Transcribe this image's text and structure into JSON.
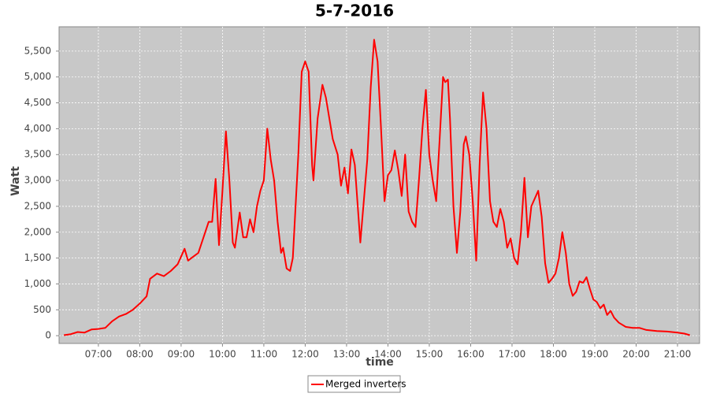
{
  "chart_data": {
    "type": "line",
    "title": "5-7-2016",
    "x_label": "time",
    "y_label": "Watt",
    "x": [
      "06:10",
      "06:20",
      "06:30",
      "06:40",
      "06:50",
      "07:00",
      "07:10",
      "07:20",
      "07:30",
      "07:40",
      "07:50",
      "08:00",
      "08:10",
      "08:15",
      "08:25",
      "08:35",
      "08:45",
      "08:55",
      "09:05",
      "09:10",
      "09:15",
      "09:25",
      "09:35",
      "09:40",
      "09:45",
      "09:50",
      "09:55",
      "10:00",
      "10:05",
      "10:10",
      "10:15",
      "10:18",
      "10:25",
      "10:30",
      "10:35",
      "10:40",
      "10:45",
      "10:50",
      "10:55",
      "11:00",
      "11:05",
      "11:10",
      "11:15",
      "11:20",
      "11:25",
      "11:28",
      "11:33",
      "11:38",
      "11:42",
      "11:50",
      "11:55",
      "12:00",
      "12:05",
      "12:10",
      "12:12",
      "12:18",
      "12:25",
      "12:30",
      "12:40",
      "12:47",
      "12:52",
      "12:57",
      "13:02",
      "13:07",
      "13:12",
      "13:20",
      "13:30",
      "13:35",
      "13:40",
      "13:45",
      "13:50",
      "13:55",
      "14:00",
      "14:05",
      "14:10",
      "14:15",
      "14:20",
      "14:25",
      "14:30",
      "14:35",
      "14:40",
      "14:45",
      "14:50",
      "14:55",
      "15:00",
      "15:05",
      "15:10",
      "15:15",
      "15:20",
      "15:23",
      "15:27",
      "15:30",
      "15:35",
      "15:40",
      "15:45",
      "15:50",
      "15:53",
      "15:58",
      "16:03",
      "16:08",
      "16:13",
      "16:18",
      "16:23",
      "16:28",
      "16:33",
      "16:38",
      "16:43",
      "16:48",
      "16:53",
      "16:58",
      "17:03",
      "17:08",
      "17:13",
      "17:18",
      "17:23",
      "17:28",
      "17:33",
      "17:38",
      "17:43",
      "17:48",
      "17:53",
      "17:58",
      "18:03",
      "18:08",
      "18:13",
      "18:18",
      "18:23",
      "18:28",
      "18:33",
      "18:38",
      "18:43",
      "18:48",
      "18:53",
      "18:58",
      "19:03",
      "19:08",
      "19:13",
      "19:18",
      "19:23",
      "19:28",
      "19:35",
      "19:45",
      "19:55",
      "20:05",
      "20:15",
      "20:30",
      "20:45",
      "21:00",
      "21:10",
      "21:18"
    ],
    "series": [
      {
        "name": "Merged inverters",
        "color": "#ff0000",
        "values": [
          10,
          30,
          70,
          60,
          120,
          130,
          150,
          280,
          370,
          420,
          500,
          620,
          760,
          1100,
          1200,
          1150,
          1250,
          1380,
          1680,
          1450,
          1500,
          1600,
          2000,
          2200,
          2200,
          3030,
          1750,
          2800,
          3950,
          3000,
          1800,
          1700,
          2380,
          1900,
          1900,
          2250,
          2000,
          2500,
          2800,
          3000,
          4000,
          3400,
          3000,
          2200,
          1600,
          1700,
          1300,
          1250,
          1500,
          3500,
          5100,
          5300,
          5100,
          3300,
          3000,
          4200,
          4850,
          4600,
          3800,
          3500,
          2900,
          3250,
          2750,
          3600,
          3300,
          1800,
          3400,
          4800,
          5720,
          5300,
          4000,
          2600,
          3100,
          3200,
          3580,
          3200,
          2700,
          3500,
          2400,
          2200,
          2100,
          3000,
          4000,
          4750,
          3500,
          3000,
          2600,
          3800,
          5000,
          4900,
          4950,
          4200,
          2500,
          1600,
          2400,
          3700,
          3850,
          3500,
          2600,
          1450,
          3300,
          4700,
          4000,
          2600,
          2200,
          2100,
          2450,
          2200,
          1700,
          1880,
          1500,
          1380,
          2000,
          3050,
          1900,
          2500,
          2650,
          2800,
          2300,
          1400,
          1020,
          1100,
          1200,
          1500,
          2000,
          1600,
          1000,
          770,
          850,
          1050,
          1020,
          1130,
          900,
          700,
          650,
          530,
          600,
          400,
          480,
          350,
          250,
          170,
          150,
          150,
          110,
          90,
          80,
          60,
          40,
          10
        ]
      }
    ],
    "xlim": [
      "06:03",
      "21:32"
    ],
    "xticks": [
      "07:00",
      "08:00",
      "09:00",
      "10:00",
      "11:00",
      "12:00",
      "13:00",
      "14:00",
      "15:00",
      "16:00",
      "17:00",
      "18:00",
      "19:00",
      "20:00",
      "21:00"
    ],
    "ylim": [
      -150,
      5970
    ],
    "yticks": [
      0,
      500,
      {
        "value": 1000,
        "label": "1,000"
      },
      {
        "value": 1500,
        "label": "1,500"
      },
      {
        "value": 2000,
        "label": "2,000"
      },
      {
        "value": 2500,
        "label": "2,500"
      },
      {
        "value": 3000,
        "label": "3,000"
      },
      {
        "value": 3500,
        "label": "3,500"
      },
      {
        "value": 4000,
        "label": "4,000"
      },
      {
        "value": 4500,
        "label": "4,500"
      },
      {
        "value": 5000,
        "label": "5,000"
      },
      {
        "value": 5500,
        "label": "5,500"
      }
    ],
    "grid": true,
    "background": "#c8c8c8",
    "legend": "bottom"
  }
}
